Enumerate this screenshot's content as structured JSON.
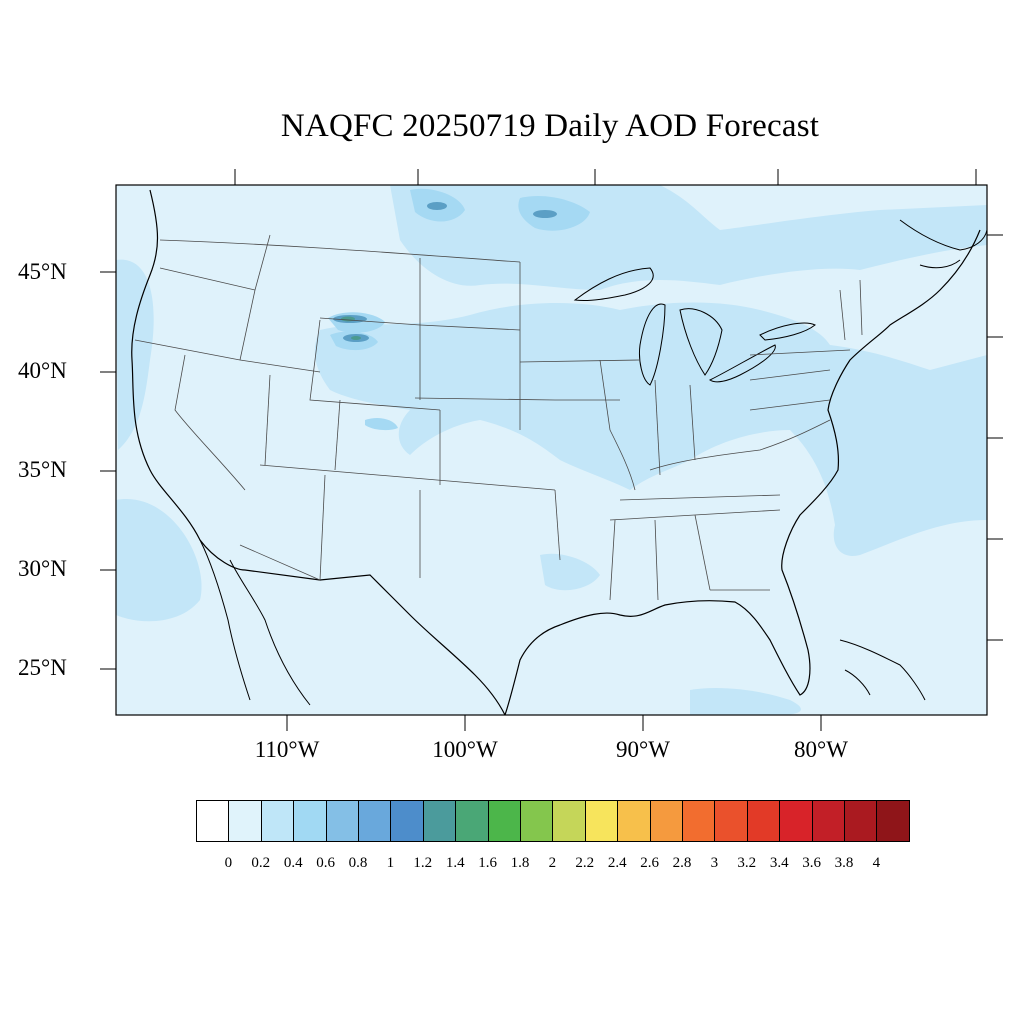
{
  "title": "NAQFC 20250719 Daily AOD Forecast",
  "lat_labels": [
    "45°N",
    "40°N",
    "35°N",
    "30°N",
    "25°N"
  ],
  "lon_labels": [
    "110°W",
    "100°W",
    "90°W",
    "80°W"
  ],
  "colorbar": {
    "labels": [
      "0",
      "0.2",
      "0.4",
      "0.6",
      "0.8",
      "1",
      "1.2",
      "1.4",
      "1.6",
      "1.8",
      "2",
      "2.2",
      "2.4",
      "2.6",
      "2.8",
      "3",
      "3.2",
      "3.4",
      "3.6",
      "3.8",
      "4"
    ],
    "colors": [
      "#ffffff",
      "#e0f3fb",
      "#bfe6f8",
      "#a1d9f3",
      "#84bfe6",
      "#69a8dc",
      "#4d8dcb",
      "#4b9b9c",
      "#4aa776",
      "#4cb64a",
      "#84c64d",
      "#c5d659",
      "#f7e45c",
      "#f7c04b",
      "#f59a3e",
      "#f26d2f",
      "#ea512c",
      "#e23a27",
      "#d82329",
      "#c21f27",
      "#aa1a20",
      "#8f1519"
    ]
  },
  "colors": {
    "background": "#dff2fb",
    "aod_0_4": "#c3e6f8",
    "aod_0_6": "#a5d9f3",
    "aod_1_2": "#5b9fc5",
    "aod_1_4": "#4b9a8f",
    "coast": "#000000",
    "boundaries": "#4a4a4a"
  }
}
